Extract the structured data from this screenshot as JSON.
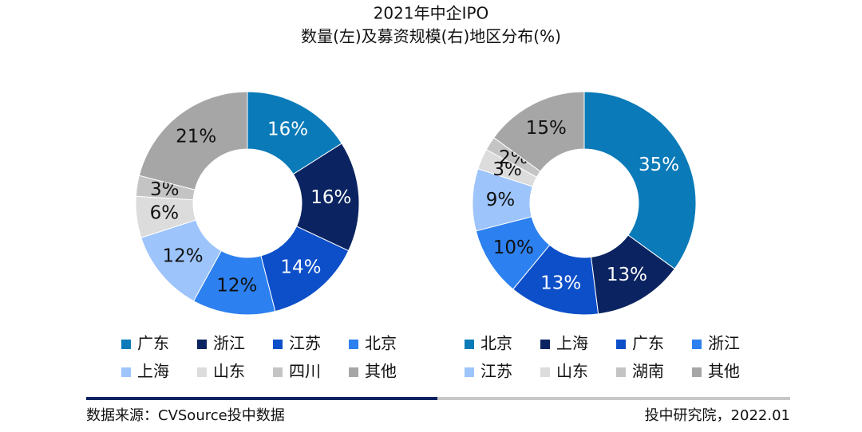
{
  "title_lines": [
    "2021年中企IPO",
    "数量(左)及募资规模(右)地区分布(%)"
  ],
  "chart_data": [
    {
      "type": "donut",
      "categories": [
        "广东",
        "浙江",
        "江苏",
        "北京",
        "上海",
        "山东",
        "四川",
        "其他"
      ],
      "values": [
        16,
        16,
        14,
        12,
        12,
        6,
        3,
        21
      ],
      "value_labels": [
        "16%",
        "16%",
        "14%",
        "12%",
        "12%",
        "6%",
        "3%",
        "21%"
      ],
      "colors": [
        "#0a7ab8",
        "#0b2461",
        "#0d4fc9",
        "#2d80ef",
        "#9dc4fb",
        "#dcdcdc",
        "#c4c4c4",
        "#a6a6a6"
      ]
    },
    {
      "type": "donut",
      "categories": [
        "北京",
        "上海",
        "广东",
        "浙江",
        "江苏",
        "山东",
        "湖南",
        "其他"
      ],
      "values": [
        35,
        13,
        13,
        10,
        9,
        3,
        2,
        15
      ],
      "value_labels": [
        "35%",
        "13%",
        "13%",
        "10%",
        "9%",
        "3%",
        "2%",
        "15%"
      ],
      "colors": [
        "#0a7ab8",
        "#0b2461",
        "#0d4fc9",
        "#2d80ef",
        "#9dc4fb",
        "#dcdcdc",
        "#c4c4c4",
        "#a6a6a6"
      ]
    }
  ],
  "footer": {
    "source": "数据来源：CVSource投中数据",
    "credit": "投中研究院，2022.01"
  }
}
